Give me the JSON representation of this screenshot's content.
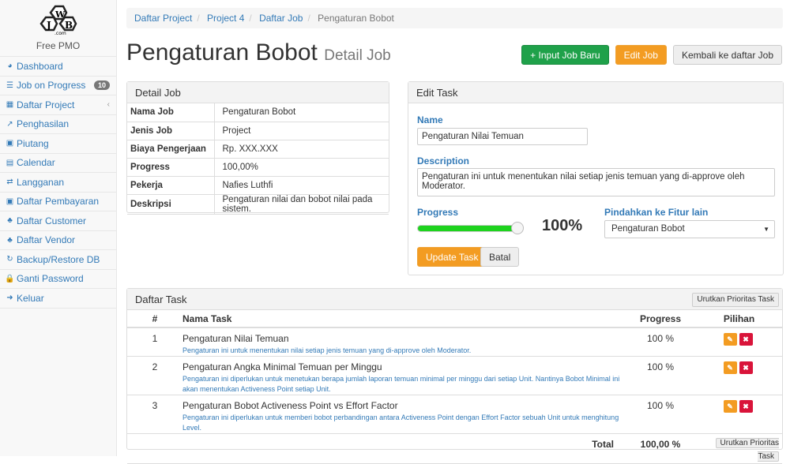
{
  "brand": {
    "logo_text": "JWB .com",
    "subtitle": "Free PMO"
  },
  "sidebar": {
    "items": [
      {
        "label": "Dashboard",
        "icon": "dashboard-icon"
      },
      {
        "label": "Job on Progress",
        "icon": "tasks-icon",
        "badge": "10"
      },
      {
        "label": "Daftar Project",
        "icon": "table-icon",
        "chevron": "‹"
      },
      {
        "label": "Penghasilan",
        "icon": "chart-line-icon"
      },
      {
        "label": "Piutang",
        "icon": "money-icon"
      },
      {
        "label": "Calendar",
        "icon": "calendar-icon"
      },
      {
        "label": "Langganan",
        "icon": "retweet-icon"
      },
      {
        "label": "Daftar Pembayaran",
        "icon": "money-icon"
      },
      {
        "label": "Daftar Customer",
        "icon": "users-icon"
      },
      {
        "label": "Daftar Vendor",
        "icon": "users-icon"
      },
      {
        "label": "Backup/Restore DB",
        "icon": "refresh-icon"
      },
      {
        "label": "Ganti Password",
        "icon": "lock-icon"
      },
      {
        "label": "Keluar",
        "icon": "sign-out-icon"
      }
    ]
  },
  "breadcrumb": [
    "Daftar Project",
    "Project 4",
    "Daftar Job",
    "Pengaturan Bobot"
  ],
  "header": {
    "title": "Pengaturan Bobot",
    "subtitle": "Detail Job",
    "btn_new": "+ Input Job Baru",
    "btn_edit": "Edit Job",
    "btn_back": "Kembali ke daftar Job"
  },
  "detail": {
    "title": "Detail Job",
    "rows": [
      [
        "Nama Job",
        "Pengaturan Bobot"
      ],
      [
        "Jenis Job",
        "Project"
      ],
      [
        "Biaya Pengerjaan",
        "Rp. XXX.XXX"
      ],
      [
        "Progress",
        "100,00%"
      ],
      [
        "Pekerja",
        "Nafies Luthfi"
      ],
      [
        "Deskripsi",
        "Pengaturan nilai dan bobot nilai pada sistem."
      ]
    ]
  },
  "edit": {
    "title": "Edit Task",
    "name_label": "Name",
    "name_value": "Pengaturan Nilai Temuan",
    "desc_label": "Description",
    "desc_value": "Pengaturan ini untuk menentukan nilai setiap jenis temuan yang di-approve oleh Moderator.",
    "progress_label": "Progress",
    "progress_value": 100,
    "progress_text": "100%",
    "move_label": "Pindahkan ke Fitur lain",
    "move_selected": "Pengaturan Bobot",
    "btn_update": "Update Task",
    "btn_cancel": "Batal",
    "colors": {
      "slider": "#1ed31e"
    }
  },
  "tasks": {
    "title": "Daftar Task",
    "sort_btn": "Urutkan Prioritas Task",
    "headers": [
      "#",
      "Nama Task",
      "Progress",
      "Pilihan"
    ],
    "rows": [
      {
        "no": "1",
        "name": "Pengaturan Nilai Temuan",
        "desc": "Pengaturan ini untuk menentukan nilai setiap jenis temuan yang di-approve oleh Moderator.",
        "progress": "100 %"
      },
      {
        "no": "2",
        "name": "Pengaturan Angka Minimal Temuan per Minggu",
        "desc": "Pengaturan ini diperlukan untuk menetukan berapa jumlah laporan temuan minimal per minggu dari setiap Unit. Nantinya Bobot Minimal ini akan menentukan Activeness Point setiap Unit.",
        "progress": "100 %"
      },
      {
        "no": "3",
        "name": "Pengaturan Bobot Activeness Point vs Effort Factor",
        "desc": "Pengaturan ini diperlukan untuk memberi bobot perbandingan antara Activeness Point dengan Effort Factor sebuah Unit untuk menghitung Level.",
        "progress": "100 %"
      }
    ],
    "total_label": "Total",
    "total_value": "100,00 %"
  }
}
